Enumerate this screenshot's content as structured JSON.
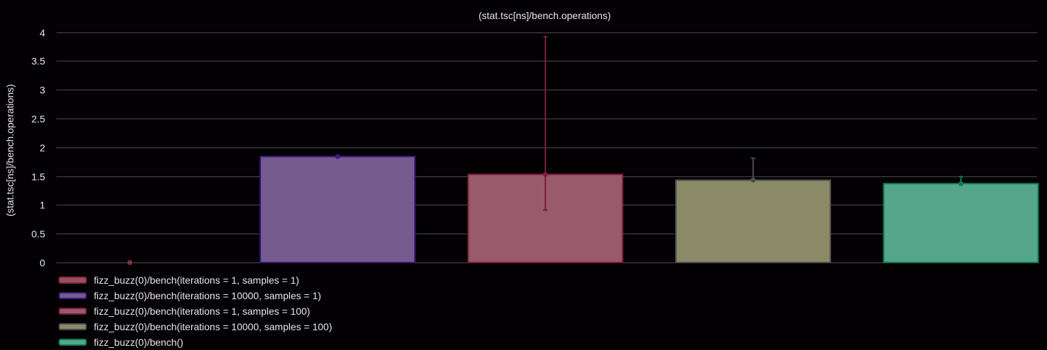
{
  "chart_data": {
    "type": "bar",
    "title": "(stat.tsc[ns]/bench.operations)",
    "xlabel": "",
    "ylabel": "(stat.tsc[ns]/bench.operations)",
    "ylim": [
      0,
      4
    ],
    "yticks": [
      "0",
      "0.5",
      "1",
      "1.5",
      "2",
      "2.5",
      "3",
      "3.5",
      "4"
    ],
    "grid": true,
    "legend_position": "bottom-left",
    "series": [
      {
        "name": "fizz_buzz(0)/bench(iterations = 1, samples = 1)",
        "value": 0,
        "error_low": 0,
        "error_high": 0,
        "color": "#8a2a45",
        "fill": "#99505f"
      },
      {
        "name": "fizz_buzz(0)/bench(iterations = 10000, samples = 1)",
        "value": 1.84,
        "error_low": 1.84,
        "error_high": 1.84,
        "color": "#3a1a7a",
        "fill": "#755b8e"
      },
      {
        "name": "fizz_buzz(0)/bench(iterations = 1, samples = 100)",
        "value": 1.53,
        "error_low": 0.91,
        "error_high": 3.92,
        "color": "#7a1e3a",
        "fill": "#995a6b"
      },
      {
        "name": "fizz_buzz(0)/bench(iterations = 10000, samples = 100)",
        "value": 1.43,
        "error_low": 1.43,
        "error_high": 1.81,
        "color": "#4d4d4d",
        "fill": "#8a8a66"
      },
      {
        "name": "fizz_buzz(0)/bench()",
        "value": 1.37,
        "error_low": 1.35,
        "error_high": 1.49,
        "color": "#0f7a50",
        "fill": "#55a68a"
      }
    ]
  }
}
